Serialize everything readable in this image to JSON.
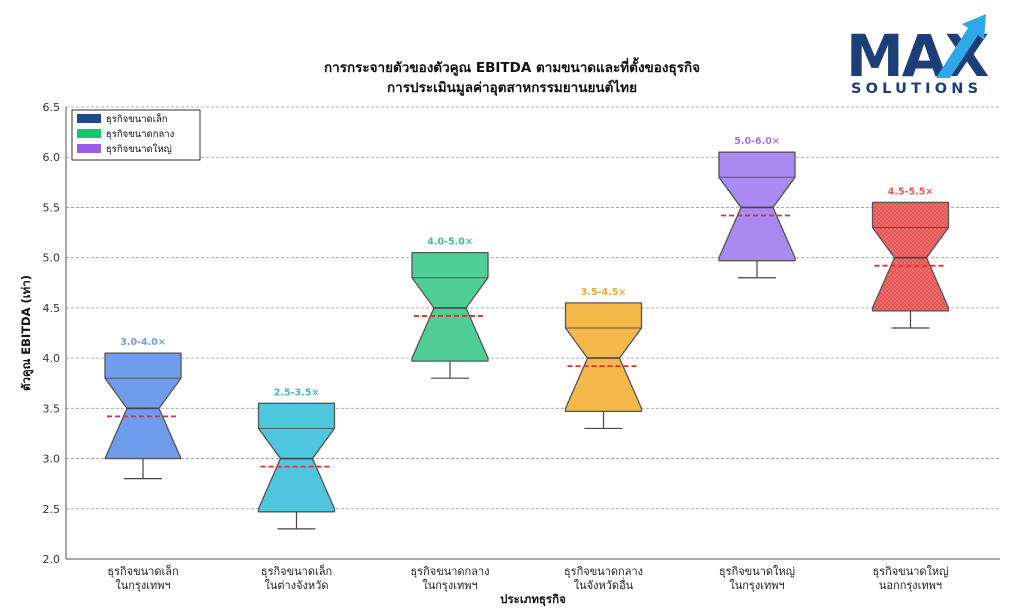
{
  "chart_data": {
    "type": "boxplot",
    "title": "การกระจายตัวของตัวคูณ EBITDA ตามขนาดและที่ตั้งของธุรกิจ",
    "subtitle": "การประเมินมูลค่าอุตสาหกรรมยานยนต์ไทย",
    "xlabel": "ประเภทธุรกิจ",
    "ylabel": "ตัวคูณ EBITDA (เท่า)",
    "ylim": [
      2.0,
      6.5
    ],
    "yticks": [
      "2.0",
      "2.5",
      "3.0",
      "3.5",
      "4.0",
      "4.5",
      "5.0",
      "5.5",
      "6.0",
      "6.5"
    ],
    "grid": "horizontal-dashed",
    "legend_position": "top-left",
    "legend": [
      {
        "label": "ธุรกิจขนาดเล็ก",
        "color": "#1e4a8c"
      },
      {
        "label": "ธุรกิจขนาดกลาง",
        "color": "#19c46e"
      },
      {
        "label": "ธุรกิจขนาดใหญ่",
        "color": "#9b5de5"
      }
    ],
    "boxes": [
      {
        "category_line1": "ธุรกิจขนาดเล็ก",
        "category_line2": "ในกรุงเทพฯ",
        "whisker_low": 2.8,
        "q1": 3.0,
        "median": 3.5,
        "q3": 3.8,
        "whisker_high": 4.0,
        "notch_low": 3.0,
        "notch_high": 4.05,
        "mean": 3.42,
        "range_label": "3.0-4.0×",
        "color": "#6f9cec",
        "label_color": "#6f9cec"
      },
      {
        "category_line1": "ธุรกิจขนาดเล็ก",
        "category_line2": "ในต่างจังหวัด",
        "whisker_low": 2.3,
        "q1": 2.5,
        "median": 3.0,
        "q3": 3.3,
        "whisker_high": 3.5,
        "notch_low": 2.47,
        "notch_high": 3.55,
        "mean": 2.92,
        "range_label": "2.5-3.5×",
        "color": "#4ec6de",
        "label_color": "#3bb8d6"
      },
      {
        "category_line1": "ธุรกิจขนาดกลาง",
        "category_line2": "ในกรุงเทพฯ",
        "whisker_low": 3.8,
        "q1": 4.0,
        "median": 4.5,
        "q3": 4.8,
        "whisker_high": 5.0,
        "notch_low": 3.97,
        "notch_high": 5.05,
        "mean": 4.42,
        "range_label": "4.0-5.0×",
        "color": "#4fcf95",
        "label_color": "#3fc08a"
      },
      {
        "category_line1": "ธุรกิจขนาดกลาง",
        "category_line2": "ในจังหวัดอื่น",
        "whisker_low": 3.3,
        "q1": 3.5,
        "median": 4.0,
        "q3": 4.3,
        "whisker_high": 4.5,
        "notch_low": 3.47,
        "notch_high": 4.55,
        "mean": 3.92,
        "range_label": "3.5-4.5×",
        "color": "#f5b84a",
        "label_color": "#f0a830"
      },
      {
        "category_line1": "ธุรกิจขนาดใหญ่",
        "category_line2": "ในกรุงเทพฯ",
        "whisker_low": 4.8,
        "q1": 5.0,
        "median": 5.5,
        "q3": 5.8,
        "whisker_high": 6.0,
        "notch_low": 4.97,
        "notch_high": 6.05,
        "mean": 5.42,
        "range_label": "5.0-6.0×",
        "color": "#a98af0",
        "label_color": "#9b7ae8"
      },
      {
        "category_line1": "ธุรกิจขนาดใหญ่",
        "category_line2": "นอกกรุงเทพฯ",
        "whisker_low": 4.3,
        "q1": 4.5,
        "median": 5.0,
        "q3": 5.3,
        "whisker_high": 5.5,
        "notch_low": 4.47,
        "notch_high": 5.55,
        "mean": 4.92,
        "range_label": "4.5-5.5×",
        "color": "#f06a6a",
        "label_color": "#ee5555"
      }
    ]
  },
  "logo": {
    "word": "MAX",
    "sub": "SOLUTIONS",
    "color_dark": "#1c3f7a",
    "color_accent": "#2ea8e6"
  }
}
